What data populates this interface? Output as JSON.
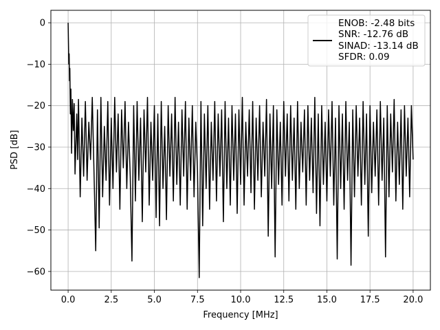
{
  "chart_data": {
    "type": "line",
    "title": "",
    "xlabel": "Frequency [MHz]",
    "ylabel": "PSD [dB]",
    "xlim": [
      -1.0,
      21.0
    ],
    "ylim": [
      -64.5,
      3.0
    ],
    "xticks": [
      0.0,
      2.5,
      5.0,
      7.5,
      10.0,
      12.5,
      15.0,
      17.5,
      20.0
    ],
    "xtick_labels": [
      "0.0",
      "2.5",
      "5.0",
      "7.5",
      "10.0",
      "12.5",
      "15.0",
      "17.5",
      "20.0"
    ],
    "yticks": [
      0,
      -10,
      -20,
      -30,
      -40,
      -50,
      -60
    ],
    "ytick_labels": [
      "0",
      "−10",
      "−20",
      "−30",
      "−40",
      "−50",
      "−60"
    ],
    "grid": true,
    "legend_position": "top-right",
    "legend_lines": [
      "ENOB: -2.48 bits",
      "SNR: -12.76 dB",
      "SINAD: -13.14 dB",
      "SFDR: 0.09"
    ],
    "line_color": "#000000",
    "series": [
      {
        "points": [
          [
            0.0,
            0.0
          ],
          [
            0.02,
            -5.0
          ],
          [
            0.04,
            -10.0
          ],
          [
            0.06,
            -7.5
          ],
          [
            0.08,
            -14.0
          ],
          [
            0.1,
            -11.0
          ],
          [
            0.13,
            -22.0
          ],
          [
            0.16,
            -16.0
          ],
          [
            0.2,
            -31.5
          ],
          [
            0.25,
            -18.5
          ],
          [
            0.3,
            -26.0
          ],
          [
            0.35,
            -19.5
          ],
          [
            0.4,
            -36.5
          ],
          [
            0.5,
            -22.0
          ],
          [
            0.55,
            -33.0
          ],
          [
            0.6,
            -18.5
          ],
          [
            0.7,
            -42.0
          ],
          [
            0.8,
            -23.0
          ],
          [
            0.9,
            -37.0
          ],
          [
            1.0,
            -19.0
          ],
          [
            1.1,
            -38.0
          ],
          [
            1.2,
            -24.0
          ],
          [
            1.3,
            -33.0
          ],
          [
            1.4,
            -18.0
          ],
          [
            1.5,
            -36.0
          ],
          [
            1.6,
            -55.0
          ],
          [
            1.7,
            -21.0
          ],
          [
            1.8,
            -49.5
          ],
          [
            1.9,
            -18.0
          ],
          [
            2.0,
            -42.0
          ],
          [
            2.1,
            -25.0
          ],
          [
            2.2,
            -38.0
          ],
          [
            2.3,
            -19.0
          ],
          [
            2.4,
            -44.0
          ],
          [
            2.5,
            -23.0
          ],
          [
            2.6,
            -40.0
          ],
          [
            2.7,
            -18.0
          ],
          [
            2.8,
            -36.0
          ],
          [
            2.9,
            -22.0
          ],
          [
            3.0,
            -45.0
          ],
          [
            3.1,
            -21.0
          ],
          [
            3.2,
            -35.0
          ],
          [
            3.3,
            -19.0
          ],
          [
            3.4,
            -40.0
          ],
          [
            3.5,
            -24.0
          ],
          [
            3.6,
            -37.0
          ],
          [
            3.7,
            -57.5
          ],
          [
            3.8,
            -20.0
          ],
          [
            3.9,
            -43.0
          ],
          [
            4.0,
            -19.0
          ],
          [
            4.1,
            -38.0
          ],
          [
            4.2,
            -23.0
          ],
          [
            4.3,
            -48.0
          ],
          [
            4.4,
            -21.0
          ],
          [
            4.5,
            -36.0
          ],
          [
            4.6,
            -18.0
          ],
          [
            4.7,
            -44.0
          ],
          [
            4.8,
            -24.0
          ],
          [
            4.9,
            -38.0
          ],
          [
            5.0,
            -20.0
          ],
          [
            5.1,
            -47.0
          ],
          [
            5.2,
            -22.0
          ],
          [
            5.3,
            -49.0
          ],
          [
            5.4,
            -19.0
          ],
          [
            5.5,
            -40.0
          ],
          [
            5.6,
            -25.0
          ],
          [
            5.7,
            -47.5
          ],
          [
            5.8,
            -20.0
          ],
          [
            5.9,
            -37.0
          ],
          [
            6.0,
            -22.0
          ],
          [
            6.1,
            -43.0
          ],
          [
            6.2,
            -18.0
          ],
          [
            6.3,
            -39.0
          ],
          [
            6.4,
            -24.0
          ],
          [
            6.5,
            -44.0
          ],
          [
            6.6,
            -21.0
          ],
          [
            6.7,
            -37.0
          ],
          [
            6.8,
            -19.0
          ],
          [
            6.9,
            -45.0
          ],
          [
            7.0,
            -23.0
          ],
          [
            7.1,
            -38.0
          ],
          [
            7.2,
            -20.0
          ],
          [
            7.3,
            -42.0
          ],
          [
            7.4,
            -24.0
          ],
          [
            7.5,
            -36.0
          ],
          [
            7.6,
            -61.5
          ],
          [
            7.7,
            -19.0
          ],
          [
            7.8,
            -49.0
          ],
          [
            7.9,
            -22.0
          ],
          [
            8.0,
            -40.0
          ],
          [
            8.1,
            -20.0
          ],
          [
            8.2,
            -45.0
          ],
          [
            8.3,
            -24.0
          ],
          [
            8.4,
            -38.0
          ],
          [
            8.5,
            -19.0
          ],
          [
            8.6,
            -43.0
          ],
          [
            8.7,
            -22.0
          ],
          [
            8.8,
            -37.0
          ],
          [
            8.9,
            -21.0
          ],
          [
            9.0,
            -48.0
          ],
          [
            9.1,
            -19.0
          ],
          [
            9.2,
            -40.0
          ],
          [
            9.3,
            -23.0
          ],
          [
            9.4,
            -44.0
          ],
          [
            9.5,
            -20.0
          ],
          [
            9.6,
            -38.0
          ],
          [
            9.7,
            -22.0
          ],
          [
            9.8,
            -46.0
          ],
          [
            9.9,
            -21.0
          ],
          [
            10.0,
            -39.0
          ],
          [
            10.1,
            -18.0
          ],
          [
            10.2,
            -44.0
          ],
          [
            10.3,
            -24.0
          ],
          [
            10.4,
            -37.0
          ],
          [
            10.5,
            -21.0
          ],
          [
            10.6,
            -41.0
          ],
          [
            10.7,
            -19.0
          ],
          [
            10.8,
            -45.0
          ],
          [
            10.9,
            -23.0
          ],
          [
            11.0,
            -38.0
          ],
          [
            11.1,
            -20.0
          ],
          [
            11.2,
            -42.0
          ],
          [
            11.3,
            -24.0
          ],
          [
            11.4,
            -37.0
          ],
          [
            11.5,
            -18.5
          ],
          [
            11.6,
            -51.5
          ],
          [
            11.7,
            -22.0
          ],
          [
            11.8,
            -40.0
          ],
          [
            11.9,
            -20.0
          ],
          [
            12.0,
            -56.5
          ],
          [
            12.1,
            -21.0
          ],
          [
            12.2,
            -39.0
          ],
          [
            12.3,
            -24.0
          ],
          [
            12.4,
            -44.0
          ],
          [
            12.5,
            -19.0
          ],
          [
            12.6,
            -37.0
          ],
          [
            12.7,
            -22.0
          ],
          [
            12.8,
            -43.0
          ],
          [
            12.9,
            -20.0
          ],
          [
            13.0,
            -38.0
          ],
          [
            13.1,
            -23.0
          ],
          [
            13.2,
            -45.0
          ],
          [
            13.3,
            -19.0
          ],
          [
            13.4,
            -40.0
          ],
          [
            13.5,
            -24.0
          ],
          [
            13.6,
            -36.0
          ],
          [
            13.7,
            -21.0
          ],
          [
            13.8,
            -44.0
          ],
          [
            13.9,
            -20.0
          ],
          [
            14.0,
            -38.0
          ],
          [
            14.1,
            -23.0
          ],
          [
            14.2,
            -41.0
          ],
          [
            14.3,
            -18.0
          ],
          [
            14.4,
            -46.0
          ],
          [
            14.5,
            -22.0
          ],
          [
            14.6,
            -49.0
          ],
          [
            14.7,
            -20.0
          ],
          [
            14.8,
            -39.0
          ],
          [
            14.9,
            -24.0
          ],
          [
            15.0,
            -43.0
          ],
          [
            15.1,
            -21.0
          ],
          [
            15.2,
            -37.0
          ],
          [
            15.3,
            -19.0
          ],
          [
            15.4,
            -44.0
          ],
          [
            15.5,
            -23.0
          ],
          [
            15.6,
            -57.0
          ],
          [
            15.7,
            -20.0
          ],
          [
            15.8,
            -40.0
          ],
          [
            15.9,
            -22.0
          ],
          [
            16.0,
            -45.0
          ],
          [
            16.1,
            -19.0
          ],
          [
            16.2,
            -38.0
          ],
          [
            16.3,
            -24.0
          ],
          [
            16.4,
            -58.5
          ],
          [
            16.5,
            -21.0
          ],
          [
            16.6,
            -42.0
          ],
          [
            16.7,
            -20.0
          ],
          [
            16.8,
            -37.0
          ],
          [
            16.9,
            -23.0
          ],
          [
            17.0,
            -44.0
          ],
          [
            17.1,
            -19.0
          ],
          [
            17.2,
            -39.0
          ],
          [
            17.3,
            -22.0
          ],
          [
            17.4,
            -51.5
          ],
          [
            17.5,
            -20.0
          ],
          [
            17.6,
            -41.0
          ],
          [
            17.7,
            -24.0
          ],
          [
            17.8,
            -37.0
          ],
          [
            17.9,
            -21.0
          ],
          [
            18.0,
            -44.0
          ],
          [
            18.1,
            -19.0
          ],
          [
            18.2,
            -38.0
          ],
          [
            18.3,
            -23.0
          ],
          [
            18.4,
            -56.5
          ],
          [
            18.5,
            -20.0
          ],
          [
            18.6,
            -42.0
          ],
          [
            18.7,
            -22.0
          ],
          [
            18.8,
            -36.0
          ],
          [
            18.9,
            -18.5
          ],
          [
            19.0,
            -43.0
          ],
          [
            19.1,
            -24.0
          ],
          [
            19.2,
            -39.0
          ],
          [
            19.3,
            -21.0
          ],
          [
            19.4,
            -45.0
          ],
          [
            19.5,
            -20.0
          ],
          [
            19.6,
            -37.0
          ],
          [
            19.7,
            -23.0
          ],
          [
            19.8,
            -42.0
          ],
          [
            19.9,
            -20.0
          ],
          [
            20.0,
            -33.0
          ]
        ]
      }
    ]
  }
}
